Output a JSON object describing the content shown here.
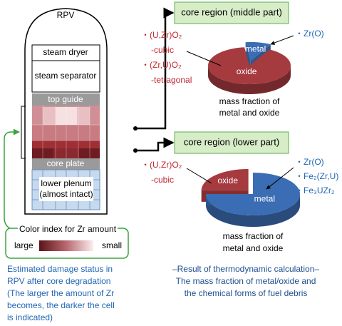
{
  "rpv": {
    "label": "RPV",
    "parts": [
      "steam dryer",
      "steam separator",
      "top guide",
      "core plate"
    ],
    "lower_plenum": [
      "lower plenum",
      "(almost intact)"
    ]
  },
  "legend": {
    "title": "Color index for Zr amount",
    "low": "large",
    "high": "small"
  },
  "left_caption": [
    "Estimated damage status in",
    "RPV after core degradation",
    "(The larger the amount of Zr",
    "becomes, the darker the cell",
    "is indicated)"
  ],
  "right_caption": [
    "–Result of thermodynamic calculation–",
    "The mass fraction of metal/oxide and",
    "the chemical forms of fuel debris"
  ],
  "pies": [
    {
      "title": "core region (middle part)",
      "slices": [
        {
          "name": "metal",
          "value": 10,
          "color": "#3a6db3"
        },
        {
          "name": "oxide",
          "value": 90,
          "color": "#a53a3f"
        }
      ],
      "oxide_species": [
        "・(U,Zr)O₂",
        "-cubic",
        "・(Zr,U)O₂",
        "-tetragonal"
      ],
      "metal_species": [
        "・Zr(O)"
      ],
      "caption": [
        "mass fraction of",
        "metal and oxide"
      ]
    },
    {
      "title": "core region (lower part)",
      "slices": [
        {
          "name": "oxide",
          "value": 25,
          "color": "#a53a3f"
        },
        {
          "name": "metal",
          "value": 75,
          "color": "#3a6db3"
        }
      ],
      "oxide_species": [
        "・(U,Zr)O₂",
        "-cubic"
      ],
      "metal_species": [
        "・Zr(O)",
        "・Fe₂(Zr,U)",
        "・Fe₃UZr₂"
      ],
      "caption": [
        "mass fraction of",
        "metal and oxide"
      ]
    }
  ]
}
